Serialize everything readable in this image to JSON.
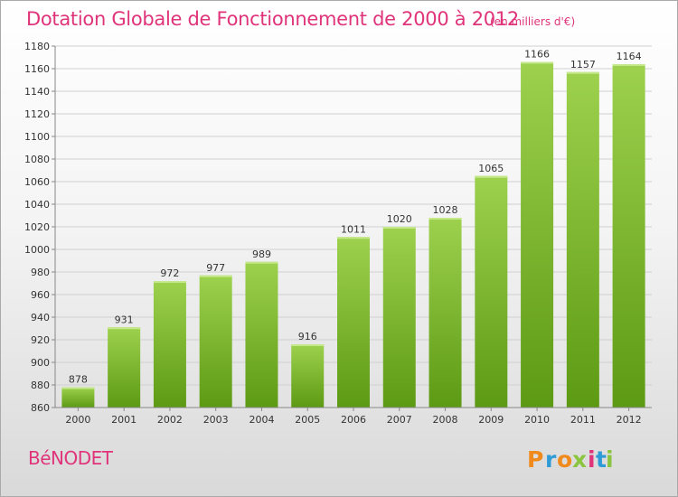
{
  "header": {
    "title": "Dotation Globale de Fonctionnement de 2000 à 2012",
    "unit": "(en milliers d'€)"
  },
  "footer": {
    "commune": "BéNODET",
    "logo": {
      "letters": [
        "P",
        "r",
        "o",
        "x",
        "i",
        "t",
        "i"
      ],
      "text": "Proxiti"
    }
  },
  "colors": {
    "title": "#e0347a",
    "bar_top": "#9dd14e",
    "bar_bottom": "#5d9a14",
    "grid": "#d0d0d0"
  },
  "chart_data": {
    "type": "bar",
    "title": "Dotation Globale de Fonctionnement de 2000 à 2012",
    "xlabel": "",
    "ylabel": "",
    "categories": [
      "2000",
      "2001",
      "2002",
      "2003",
      "2004",
      "2005",
      "2006",
      "2007",
      "2008",
      "2009",
      "2010",
      "2011",
      "2012"
    ],
    "values": [
      878,
      931,
      972,
      977,
      989,
      916,
      1011,
      1020,
      1028,
      1065,
      1166,
      1157,
      1164
    ],
    "ylim": [
      860,
      1180
    ],
    "yticks": [
      860,
      880,
      900,
      920,
      940,
      960,
      980,
      1000,
      1020,
      1040,
      1060,
      1080,
      1100,
      1120,
      1140,
      1160,
      1180
    ],
    "grid": true,
    "data_labels": true,
    "legend": "none"
  }
}
